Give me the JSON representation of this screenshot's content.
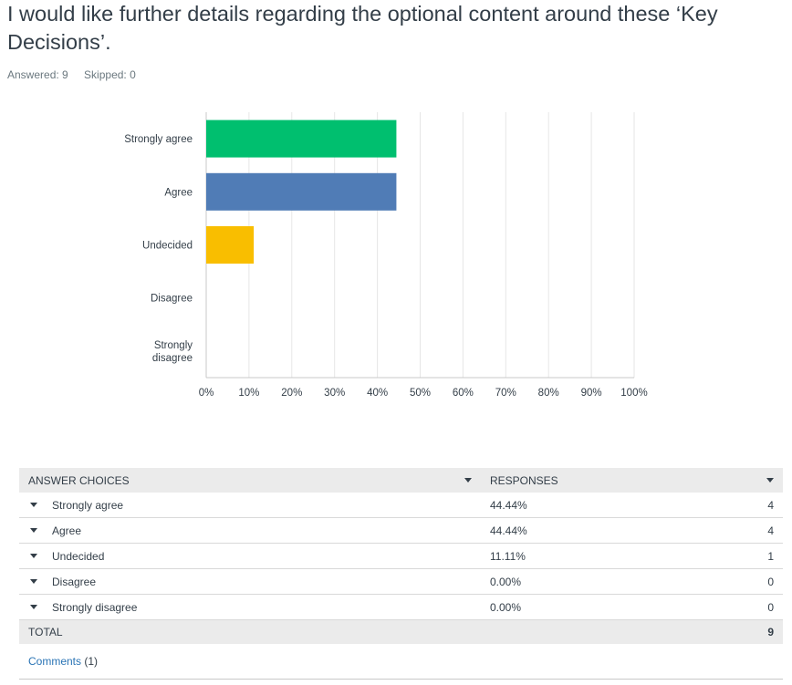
{
  "question": {
    "title": "I would like further details regarding the optional content around these ‘Key Decisions’."
  },
  "meta": {
    "answered": "Answered: 9",
    "skipped": "Skipped: 0"
  },
  "chart_data": {
    "type": "bar",
    "orientation": "horizontal",
    "categories": [
      "Strongly agree",
      "Agree",
      "Undecided",
      "Disagree",
      "Strongly disagree"
    ],
    "values": [
      44.44,
      44.44,
      11.11,
      0,
      0
    ],
    "colors": [
      "#00bf6f",
      "#507cb6",
      "#f9be00",
      "#6bc8cd",
      "#ac5a8e"
    ],
    "xlim": [
      0,
      100
    ],
    "x_ticks": [
      "0%",
      "10%",
      "20%",
      "30%",
      "40%",
      "50%",
      "60%",
      "70%",
      "80%",
      "90%",
      "100%"
    ],
    "grid": true
  },
  "table": {
    "headers": [
      "ANSWER CHOICES",
      "RESPONSES"
    ],
    "rows": [
      {
        "choice": "Strongly agree",
        "percent": "44.44%",
        "count": "4"
      },
      {
        "choice": "Agree",
        "percent": "44.44%",
        "count": "4"
      },
      {
        "choice": "Undecided",
        "percent": "11.11%",
        "count": "1"
      },
      {
        "choice": "Disagree",
        "percent": "0.00%",
        "count": "0"
      },
      {
        "choice": "Strongly disagree",
        "percent": "0.00%",
        "count": "0"
      }
    ],
    "total_label": "TOTAL",
    "total_count": "9"
  },
  "comments": {
    "link": "Comments",
    "count": "(1)"
  }
}
